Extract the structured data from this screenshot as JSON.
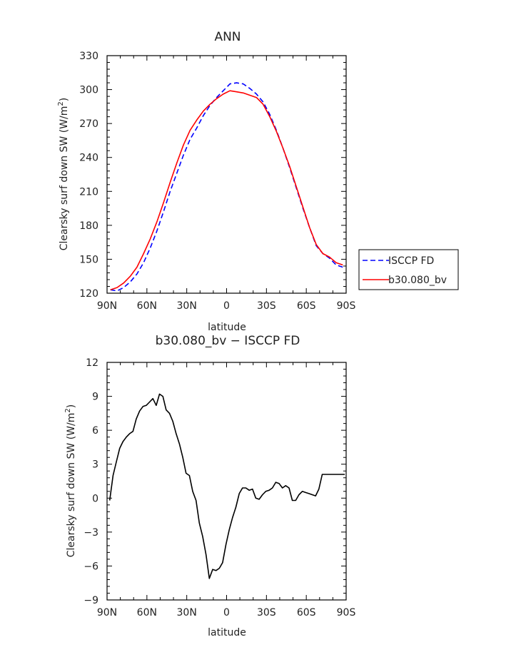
{
  "chart_data": [
    {
      "type": "line",
      "title": "ANN",
      "xlabel": "latitude",
      "ylabel": "Clearsky surf down SW (W/m²)",
      "ylabel_main": "Clearsky surf down SW (W/m",
      "ylabel_sup": "2",
      "ylabel_end": ")",
      "xlim": [
        90,
        -90
      ],
      "ylim": [
        120,
        330
      ],
      "xticks": [
        90,
        60,
        30,
        0,
        -30,
        -60,
        -90
      ],
      "xtick_labels": [
        "90N",
        "60N",
        "30N",
        "0",
        "30S",
        "60S",
        "90S"
      ],
      "yticks": [
        120,
        150,
        180,
        210,
        240,
        270,
        300,
        330
      ],
      "ytick_labels": [
        "120",
        "150",
        "180",
        "210",
        "240",
        "270",
        "300",
        "330"
      ],
      "legend_position": "right, outside plot",
      "series": [
        {
          "name": "ISCCP FD",
          "color": "#0000ff",
          "dash": "dashed",
          "x": [
            87.5,
            82.5,
            77.5,
            72.5,
            67.5,
            62.5,
            57.5,
            52.5,
            47.5,
            42.5,
            37.5,
            32.5,
            27.5,
            22.5,
            17.5,
            12.5,
            7.5,
            2.5,
            -2.5,
            -7.5,
            -12.5,
            -17.5,
            -22.5,
            -27.5,
            -32.5,
            -37.5,
            -42.5,
            -47.5,
            -52.5,
            -57.5,
            -62.5,
            -67.5,
            -72.5,
            -77.5,
            -82.5,
            -87.5
          ],
          "y": [
            123,
            122,
            125,
            130,
            137,
            147,
            160,
            175,
            192,
            210,
            226,
            242,
            256,
            266,
            277,
            286,
            293,
            299,
            305,
            306,
            305,
            301,
            296,
            289,
            278,
            264,
            248,
            231,
            213,
            195,
            178,
            162,
            155,
            151,
            145,
            143
          ]
        },
        {
          "name": "b30.080_bv",
          "color": "#ff0000",
          "dash": "solid",
          "x": [
            87.5,
            82.5,
            77.5,
            72.5,
            67.5,
            62.5,
            57.5,
            52.5,
            47.5,
            42.5,
            37.5,
            32.5,
            27.5,
            22.5,
            17.5,
            12.5,
            7.5,
            2.5,
            -2.5,
            -7.5,
            -12.5,
            -17.5,
            -22.5,
            -27.5,
            -32.5,
            -37.5,
            -42.5,
            -47.5,
            -52.5,
            -57.5,
            -62.5,
            -67.5,
            -72.5,
            -77.5,
            -82.5,
            -87.5
          ],
          "y": [
            123,
            125,
            129,
            135,
            143,
            155,
            168,
            183,
            200,
            218,
            235,
            251,
            264,
            273,
            281,
            287,
            292,
            296,
            299,
            298,
            297,
            295,
            293,
            287,
            276,
            263,
            248,
            232,
            214,
            196,
            178,
            163,
            155,
            152,
            147,
            145
          ]
        }
      ]
    },
    {
      "type": "line",
      "title": "b30.080_bv − ISCCP FD",
      "xlabel": "latitude",
      "ylabel": "Clearsky surf down SW (W/m²)",
      "ylabel_main": "Clearsky surf down SW (W/m",
      "ylabel_sup": "2",
      "ylabel_end": ")",
      "xlim": [
        90,
        -90
      ],
      "ylim": [
        -9,
        12
      ],
      "xticks": [
        90,
        60,
        30,
        0,
        -30,
        -60,
        -90
      ],
      "xtick_labels": [
        "90N",
        "60N",
        "30N",
        "0",
        "30S",
        "60S",
        "90S"
      ],
      "yticks": [
        -9,
        -6,
        -3,
        0,
        3,
        6,
        9,
        12
      ],
      "ytick_labels": [
        "−9",
        "−6",
        "−3",
        "0",
        "3",
        "6",
        "9",
        "12"
      ],
      "series": [
        {
          "color": "#000000",
          "dash": "solid",
          "x": [
            88,
            85.5,
            83,
            80.5,
            78,
            75.5,
            73,
            70.5,
            68,
            65.5,
            63,
            60.5,
            58,
            55.5,
            53,
            50.5,
            48,
            45.5,
            43,
            40.5,
            38,
            35.5,
            33,
            30.5,
            28,
            25.5,
            23,
            20.5,
            18,
            15.5,
            13,
            10.5,
            8,
            5.5,
            3,
            0.5,
            -2,
            -4.5,
            -7,
            -9.5,
            -12,
            -14.5,
            -17,
            -19.5,
            -22,
            -24.5,
            -27,
            -29.5,
            -32,
            -34.5,
            -37,
            -39.5,
            -42,
            -44.5,
            -47,
            -49.5,
            -52,
            -54.5,
            -57,
            -59.5,
            -62,
            -64.5,
            -67,
            -69.5,
            -72,
            -74.5,
            -77,
            -79.5,
            -82,
            -84.5,
            -87,
            -89
          ],
          "y": [
            -0.2,
            2.0,
            3.2,
            4.4,
            5.0,
            5.4,
            5.7,
            5.9,
            7.0,
            7.7,
            8.1,
            8.2,
            8.5,
            8.8,
            8.2,
            9.2,
            9.0,
            7.8,
            7.5,
            6.8,
            5.7,
            4.8,
            3.6,
            2.2,
            2.0,
            0.6,
            -0.2,
            -2.2,
            -3.4,
            -5.0,
            -7.1,
            -6.3,
            -6.4,
            -6.2,
            -5.7,
            -4.1,
            -2.8,
            -1.7,
            -0.8,
            0.4,
            0.9,
            0.9,
            0.7,
            0.8,
            0.0,
            -0.1,
            0.3,
            0.6,
            0.7,
            0.9,
            1.4,
            1.3,
            0.9,
            1.1,
            0.9,
            -0.2,
            -0.2,
            0.3,
            0.6,
            0.5,
            0.4,
            0.3,
            0.2,
            0.8,
            2.1,
            2.1,
            2.1,
            2.1,
            2.1,
            2.1,
            2.1,
            2.1
          ]
        }
      ]
    }
  ]
}
